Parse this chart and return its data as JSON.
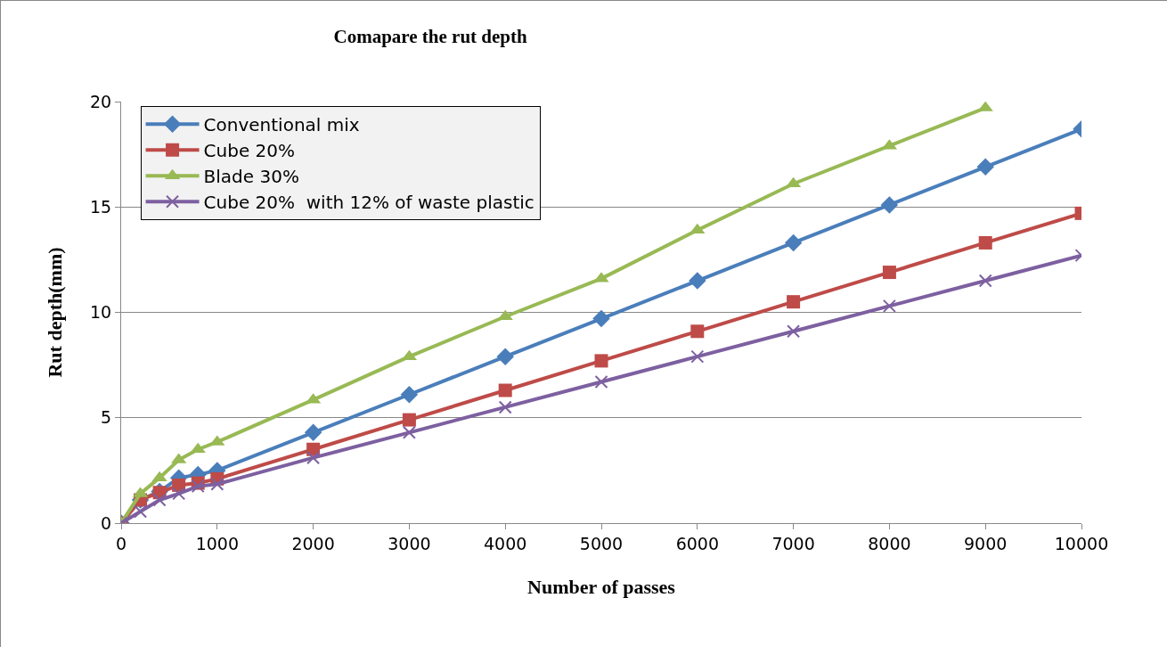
{
  "chart_data": {
    "type": "line",
    "title": "Comapare the rut depth",
    "xlabel": "Number of passes",
    "ylabel": "Rut depth(mm)",
    "x": [
      0,
      200,
      400,
      600,
      800,
      1000,
      2000,
      3000,
      4000,
      5000,
      6000,
      7000,
      8000,
      9000,
      10000
    ],
    "series": [
      {
        "name": "Conventional mix",
        "color": "#4a7ebb",
        "marker": "diamond",
        "values": [
          0,
          1.1,
          1.5,
          2.15,
          2.3,
          2.5,
          4.3,
          6.1,
          7.9,
          9.7,
          11.5,
          13.3,
          15.1,
          16.9,
          18.7
        ]
      },
      {
        "name": "Cube 20%",
        "color": "#be4b48",
        "marker": "square",
        "values": [
          0,
          1.1,
          1.45,
          1.8,
          1.9,
          2.1,
          3.5,
          4.9,
          6.3,
          7.7,
          9.1,
          10.5,
          11.9,
          13.3,
          14.7
        ]
      },
      {
        "name": "Blade 30%",
        "color": "#98b954",
        "marker": "triangle",
        "values": [
          0,
          1.4,
          2.15,
          3.0,
          3.5,
          3.85,
          5.85,
          7.9,
          9.8,
          11.6,
          13.9,
          16.1,
          17.9,
          19.7,
          null
        ]
      },
      {
        "name": "Cube 20%  with 12% of waste plastic",
        "color": "#7d60a0",
        "marker": "cross",
        "values": [
          0,
          0.55,
          1.1,
          1.4,
          1.75,
          1.85,
          3.1,
          4.3,
          5.5,
          6.7,
          7.9,
          9.1,
          10.3,
          11.5,
          12.7
        ]
      }
    ],
    "xlim": [
      0,
      10000
    ],
    "xticks": [
      0,
      1000,
      2000,
      3000,
      4000,
      5000,
      6000,
      7000,
      8000,
      9000,
      10000
    ],
    "ylim": [
      0,
      20
    ],
    "yticks": [
      0,
      5,
      10,
      15,
      20
    ],
    "grid": "y",
    "legend": "top left",
    "line_style": "solid"
  }
}
